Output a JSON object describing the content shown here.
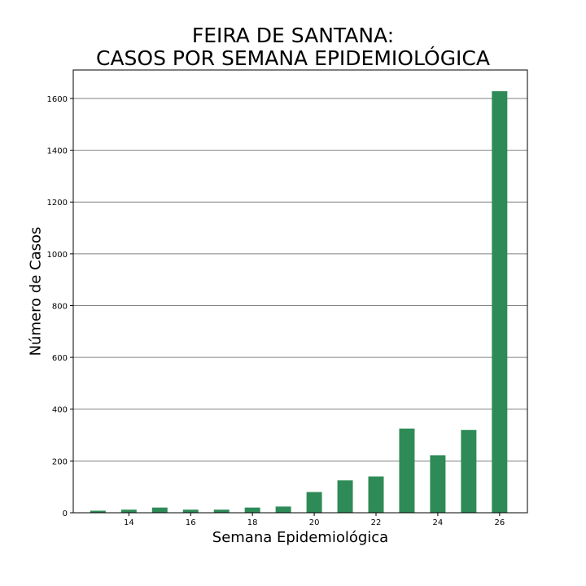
{
  "chart_data": {
    "type": "bar",
    "title_line1": "FEIRA DE SANTANA:",
    "title_line2": "CASOS POR SEMANA EPIDEMIOLÓGICA",
    "xlabel": "Semana Epidemiológica",
    "ylabel": "Número de Casos",
    "x": [
      13,
      14,
      15,
      16,
      17,
      18,
      19,
      20,
      21,
      22,
      23,
      24,
      25,
      26
    ],
    "values": [
      8,
      12,
      20,
      12,
      12,
      20,
      24,
      80,
      125,
      140,
      325,
      222,
      320,
      1628
    ],
    "xticks": [
      14,
      16,
      18,
      20,
      22,
      24,
      26
    ],
    "yticks": [
      0,
      200,
      400,
      600,
      800,
      1000,
      1200,
      1400,
      1600
    ],
    "xlim": [
      12.2,
      26.9
    ],
    "ylim": [
      0,
      1710
    ],
    "grid": "horizontal",
    "bar_color": "#2e8b57",
    "grid_color": "#808080"
  }
}
